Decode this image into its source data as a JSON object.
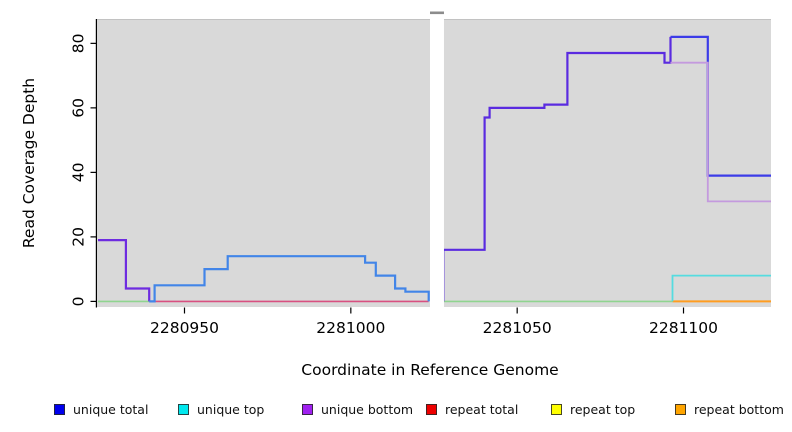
{
  "figure": {
    "xlabel": "Coordinate in Reference Genome",
    "ylabel": "Read Coverage Depth"
  },
  "legend": {
    "items": [
      {
        "label": "unique total",
        "color": "#0000EE"
      },
      {
        "label": "unique top",
        "color": "#00E8EE"
      },
      {
        "label": "unique bottom",
        "color": "#A020F0"
      },
      {
        "label": "repeat total",
        "color": "#EE0000"
      },
      {
        "label": "repeat top",
        "color": "#FFFF00"
      },
      {
        "label": "repeat bottom",
        "color": "#FFA500"
      }
    ]
  },
  "chart_data": {
    "type": "line",
    "subtype": "step-coverage",
    "title": "",
    "xlabel": "Coordinate in Reference Genome",
    "ylabel": "Read Coverage Depth",
    "xlim": [
      2280924,
      2281126
    ],
    "ylim": [
      0,
      87
    ],
    "xticks": [
      2280950,
      2281000,
      2281050,
      2281100
    ],
    "yticks": [
      0,
      20,
      40,
      60,
      80
    ],
    "grid": false,
    "legend_position": "bottom",
    "panel_bg": "#D9D9D9",
    "panel_top_edge": "#C2C2C2",
    "axis_color": "#000000",
    "masked_region": {
      "x0": 2281023.8,
      "x1": 2281028.0,
      "fill": "#FFFFFF",
      "cap_color": "#8C8C8C"
    },
    "zero_lines": [
      {
        "name": "zero-overlap-left",
        "x0": 2280924.0,
        "x1": 2280939.5,
        "depth": 0,
        "color": "#90D490",
        "width": 1.6
      },
      {
        "name": "repeat-total-zero",
        "x0": 2280939.5,
        "x1": 2281023.4,
        "depth": 0,
        "color": "#D85080",
        "width": 1.6
      },
      {
        "name": "zero-overlap-right",
        "x0": 2281028.0,
        "x1": 2281096.7,
        "depth": 0,
        "color": "#90D490",
        "width": 1.6
      },
      {
        "name": "repeat-bottom-zero",
        "x0": 2281096.7,
        "x1": 2281126.3,
        "depth": 0,
        "color": "#FF9D20",
        "width": 2.0
      }
    ],
    "series": [
      {
        "name": "unique total",
        "segments": [
          {
            "color": "#6E2CE0",
            "width": 2.2,
            "points": [
              [
                2280924.0,
                19
              ],
              [
                2280932.4,
                4
              ],
              [
                2280939.4,
                0
              ]
            ]
          },
          {
            "color": "#4285E8",
            "width": 2.2,
            "points": [
              [
                2280939.4,
                0
              ],
              [
                2280941.0,
                5
              ],
              [
                2280956.0,
                10
              ],
              [
                2280963.0,
                14
              ],
              [
                2281004.3,
                12
              ],
              [
                2281007.5,
                8
              ],
              [
                2281013.3,
                4
              ],
              [
                2281016.4,
                3
              ],
              [
                2281023.4,
                0
              ]
            ]
          },
          {
            "color": "#5A2BE0",
            "width": 2.2,
            "points": [
              [
                2281027.8,
                0
              ],
              [
                2281027.8,
                16
              ],
              [
                2281040.2,
                57
              ],
              [
                2281041.7,
                60
              ],
              [
                2281058.2,
                61
              ],
              [
                2281065.1,
                77
              ],
              [
                2281094.3,
                74
              ],
              [
                2281096.1,
                82
              ]
            ]
          },
          {
            "color": "#3C3CE8",
            "width": 2.2,
            "points": [
              [
                2281096.1,
                82
              ],
              [
                2281107.3,
                39
              ],
              [
                2281126.3,
                39
              ]
            ]
          }
        ]
      },
      {
        "name": "unique top",
        "segments": [
          {
            "color": "#55DCE0",
            "width": 1.8,
            "points": [
              [
                2281096.7,
                0
              ],
              [
                2281096.7,
                8
              ],
              [
                2281126.3,
                8
              ]
            ]
          }
        ]
      },
      {
        "name": "unique bottom",
        "segments": [
          {
            "color": "#C49ADE",
            "width": 1.8,
            "points": [
              [
                2281096.1,
                74
              ],
              [
                2281107.3,
                31
              ],
              [
                2281126.3,
                31
              ]
            ]
          }
        ]
      }
    ]
  }
}
